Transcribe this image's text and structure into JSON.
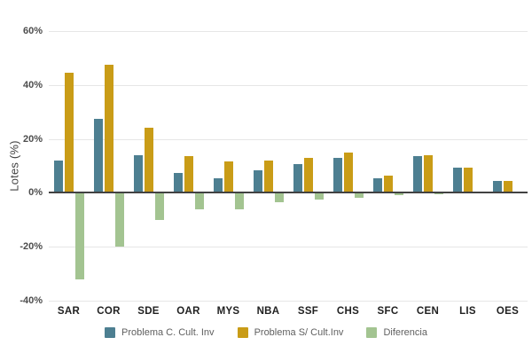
{
  "chart_data": {
    "type": "bar",
    "title": "",
    "xlabel": "",
    "ylabel": "Lotes (%)",
    "categories": [
      "SAR",
      "COR",
      "SDE",
      "OAR",
      "MYS",
      "NBA",
      "SSF",
      "CHS",
      "SFC",
      "CEN",
      "LIS",
      "OES"
    ],
    "series": [
      {
        "name": "Problema C. Cult. Inv",
        "color": "#4d7f91",
        "values": [
          12,
          27.5,
          14,
          7.5,
          5.5,
          8.5,
          10.5,
          13,
          5.5,
          13.5,
          9.5,
          4.5
        ]
      },
      {
        "name": "Problema S/ Cult.Inv",
        "color": "#c99c17",
        "values": [
          44.5,
          47.5,
          24,
          13.5,
          11.5,
          12,
          13,
          15,
          6.5,
          14,
          9.5,
          4.5
        ]
      },
      {
        "name": "Diferencia",
        "color": "#a3c491",
        "values": [
          -32,
          -20,
          -10,
          -6,
          -6,
          -3.5,
          -2.5,
          -2,
          -1,
          -0.5,
          0,
          0
        ]
      }
    ],
    "ylim": [
      -40,
      60
    ],
    "yticks": [
      60,
      40,
      20,
      0,
      -20,
      -40
    ],
    "ytick_labels": [
      "60%",
      "40%",
      "20%",
      "0%",
      "-20%",
      "-40%"
    ],
    "grid": true,
    "legend_position": "bottom",
    "colors": {
      "background": "#ffffff",
      "gridline": "#e6e6e6",
      "zero_line": "#424242",
      "tick_text": "#4d4d4d",
      "category_text": "#212121",
      "legend_text": "#5f5f5f"
    }
  }
}
